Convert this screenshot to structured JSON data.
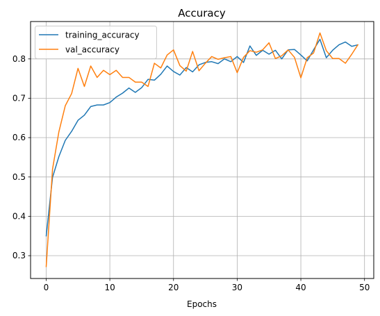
{
  "chart_data": {
    "type": "line",
    "title": "Accuracy",
    "xlabel": "Epochs",
    "ylabel": "",
    "xlim": [
      -2.45,
      51.45
    ],
    "ylim": [
      0.242,
      0.895
    ],
    "xticks": [
      0,
      10,
      20,
      30,
      40,
      50
    ],
    "yticks": [
      0.3,
      0.4,
      0.5,
      0.6,
      0.7,
      0.8
    ],
    "grid": true,
    "legend_position": "top-left",
    "x": [
      0,
      1,
      2,
      3,
      4,
      5,
      6,
      7,
      8,
      9,
      10,
      11,
      12,
      13,
      14,
      15,
      16,
      17,
      18,
      19,
      20,
      21,
      22,
      23,
      24,
      25,
      26,
      27,
      28,
      29,
      30,
      31,
      32,
      33,
      34,
      35,
      36,
      37,
      38,
      39,
      40,
      41,
      42,
      43,
      44,
      45,
      46,
      47,
      48,
      49
    ],
    "series": [
      {
        "name": "training_accuracy",
        "color": "#1f77b4",
        "values": [
          0.349,
          0.499,
          0.552,
          0.593,
          0.616,
          0.644,
          0.657,
          0.679,
          0.683,
          0.683,
          0.689,
          0.703,
          0.713,
          0.726,
          0.715,
          0.727,
          0.748,
          0.746,
          0.761,
          0.782,
          0.768,
          0.759,
          0.778,
          0.767,
          0.785,
          0.791,
          0.793,
          0.788,
          0.8,
          0.793,
          0.806,
          0.791,
          0.833,
          0.809,
          0.822,
          0.812,
          0.822,
          0.8,
          0.823,
          0.824,
          0.81,
          0.795,
          0.823,
          0.85,
          0.803,
          0.822,
          0.836,
          0.843,
          0.832,
          0.836
        ]
      },
      {
        "name": "val_accuracy",
        "color": "#ff7f0e",
        "values": [
          0.271,
          0.52,
          0.615,
          0.681,
          0.712,
          0.776,
          0.73,
          0.782,
          0.753,
          0.771,
          0.76,
          0.771,
          0.753,
          0.753,
          0.741,
          0.741,
          0.73,
          0.789,
          0.777,
          0.81,
          0.823,
          0.783,
          0.769,
          0.819,
          0.77,
          0.789,
          0.806,
          0.799,
          0.803,
          0.806,
          0.765,
          0.804,
          0.821,
          0.817,
          0.823,
          0.841,
          0.801,
          0.808,
          0.823,
          0.804,
          0.752,
          0.803,
          0.815,
          0.866,
          0.821,
          0.801,
          0.801,
          0.789,
          0.812,
          0.837
        ]
      }
    ]
  }
}
